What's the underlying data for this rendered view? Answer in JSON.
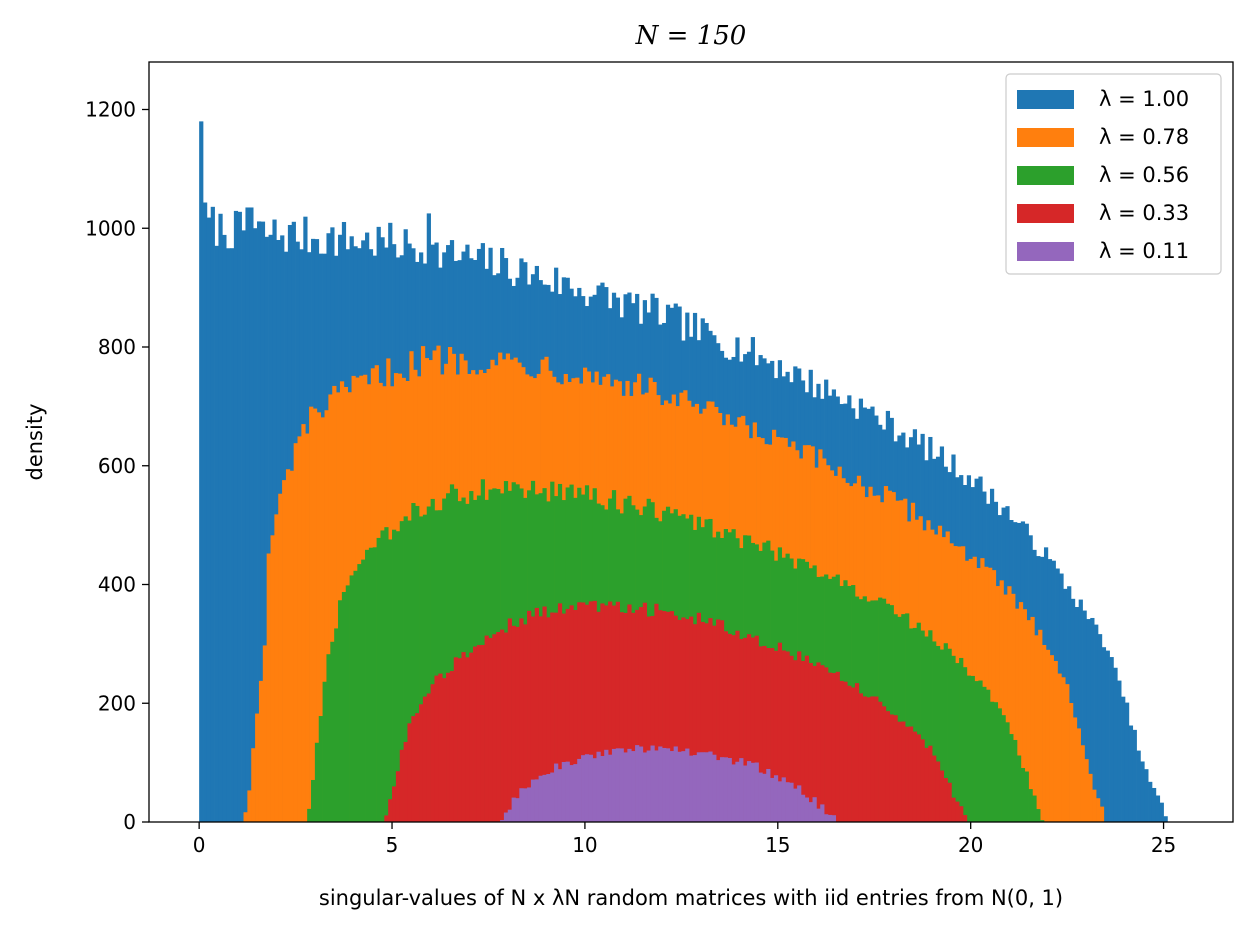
{
  "chart_data": {
    "type": "bar",
    "histogram": true,
    "title": "N = 150",
    "xlabel": "singular-values of N x λN random matrices with iid entries from N(0, 1)",
    "ylabel": "density",
    "xlim": [
      -1.3,
      26.8
    ],
    "ylim": [
      0,
      1280
    ],
    "xticks": [
      0,
      5,
      10,
      15,
      20,
      25
    ],
    "yticks": [
      0,
      200,
      400,
      600,
      800,
      1000,
      1200
    ],
    "legend_position": "top-right",
    "bin_width": 0.1,
    "series": [
      {
        "name": "λ = 1.00",
        "color": "#1f77b4",
        "x_min": 0.0,
        "x_max": 25.1,
        "envelope": [
          [
            0,
            1020
          ],
          [
            0.5,
            1000
          ],
          [
            1,
            995
          ],
          [
            2,
            990
          ],
          [
            3,
            985
          ],
          [
            4,
            980
          ],
          [
            5,
            975
          ],
          [
            6,
            960
          ],
          [
            7,
            950
          ],
          [
            8,
            935
          ],
          [
            9,
            915
          ],
          [
            10,
            895
          ],
          [
            11,
            875
          ],
          [
            12,
            855
          ],
          [
            13,
            825
          ],
          [
            14,
            800
          ],
          [
            15,
            770
          ],
          [
            16,
            735
          ],
          [
            17,
            705
          ],
          [
            18,
            665
          ],
          [
            19,
            625
          ],
          [
            20,
            580
          ],
          [
            21,
            520
          ],
          [
            22,
            445
          ],
          [
            23,
            350
          ],
          [
            23.5,
            300
          ],
          [
            24,
            205
          ],
          [
            24.5,
            90
          ],
          [
            25,
            20
          ],
          [
            25.1,
            0
          ]
        ],
        "spikes": [
          [
            0.02,
            1220
          ],
          [
            0.05,
            1180
          ],
          [
            1.3,
            1035
          ],
          [
            5.9,
            1025
          ]
        ]
      },
      {
        "name": "λ = 0.78",
        "color": "#ff7f0e",
        "x_min": 1.15,
        "x_max": 23.5,
        "envelope": [
          [
            1.15,
            0
          ],
          [
            1.3,
            60
          ],
          [
            1.5,
            180
          ],
          [
            1.7,
            300
          ],
          [
            1.8,
            440
          ],
          [
            2,
            520
          ],
          [
            2.5,
            630
          ],
          [
            3,
            690
          ],
          [
            4,
            730
          ],
          [
            5,
            760
          ],
          [
            6,
            780
          ],
          [
            7,
            780
          ],
          [
            8,
            775
          ],
          [
            9,
            770
          ],
          [
            10,
            755
          ],
          [
            11,
            740
          ],
          [
            12,
            720
          ],
          [
            13,
            695
          ],
          [
            14,
            665
          ],
          [
            15,
            640
          ],
          [
            16,
            610
          ],
          [
            17,
            575
          ],
          [
            18,
            540
          ],
          [
            19,
            500
          ],
          [
            20,
            450
          ],
          [
            21,
            385
          ],
          [
            22,
            300
          ],
          [
            22.5,
            230
          ],
          [
            23,
            100
          ],
          [
            23.4,
            25
          ],
          [
            23.5,
            0
          ]
        ]
      },
      {
        "name": "λ = 0.56",
        "color": "#2ca02c",
        "x_min": 2.8,
        "x_max": 21.9,
        "envelope": [
          [
            2.8,
            0
          ],
          [
            3.0,
            100
          ],
          [
            3.3,
            260
          ],
          [
            3.7,
            380
          ],
          [
            4.5,
            460
          ],
          [
            5.5,
            520
          ],
          [
            6.5,
            550
          ],
          [
            7.5,
            560
          ],
          [
            8.5,
            560
          ],
          [
            9.5,
            555
          ],
          [
            10.5,
            545
          ],
          [
            11.5,
            530
          ],
          [
            12.5,
            510
          ],
          [
            13.5,
            490
          ],
          [
            14.5,
            465
          ],
          [
            15.5,
            440
          ],
          [
            16.5,
            410
          ],
          [
            17.5,
            375
          ],
          [
            18.5,
            335
          ],
          [
            19.5,
            285
          ],
          [
            20.5,
            215
          ],
          [
            21,
            165
          ],
          [
            21.5,
            70
          ],
          [
            21.9,
            0
          ]
        ]
      },
      {
        "name": "λ = 0.33",
        "color": "#d62728",
        "x_min": 4.8,
        "x_max": 19.9,
        "envelope": [
          [
            4.8,
            0
          ],
          [
            5.1,
            80
          ],
          [
            5.5,
            170
          ],
          [
            6,
            230
          ],
          [
            7,
            290
          ],
          [
            8,
            330
          ],
          [
            9,
            355
          ],
          [
            10,
            365
          ],
          [
            11,
            365
          ],
          [
            12,
            355
          ],
          [
            13,
            340
          ],
          [
            14,
            320
          ],
          [
            15,
            295
          ],
          [
            16,
            265
          ],
          [
            17,
            230
          ],
          [
            18,
            185
          ],
          [
            19,
            120
          ],
          [
            19.5,
            55
          ],
          [
            19.9,
            0
          ]
        ]
      },
      {
        "name": "λ = 0.11",
        "color": "#9467bd",
        "x_min": 7.8,
        "x_max": 16.6,
        "envelope": [
          [
            7.8,
            0
          ],
          [
            8.2,
            40
          ],
          [
            8.8,
            80
          ],
          [
            9.5,
            100
          ],
          [
            10.5,
            115
          ],
          [
            11.5,
            125
          ],
          [
            12.5,
            122
          ],
          [
            13.5,
            110
          ],
          [
            14.5,
            92
          ],
          [
            15.5,
            60
          ],
          [
            16.2,
            20
          ],
          [
            16.6,
            0
          ]
        ]
      }
    ]
  }
}
